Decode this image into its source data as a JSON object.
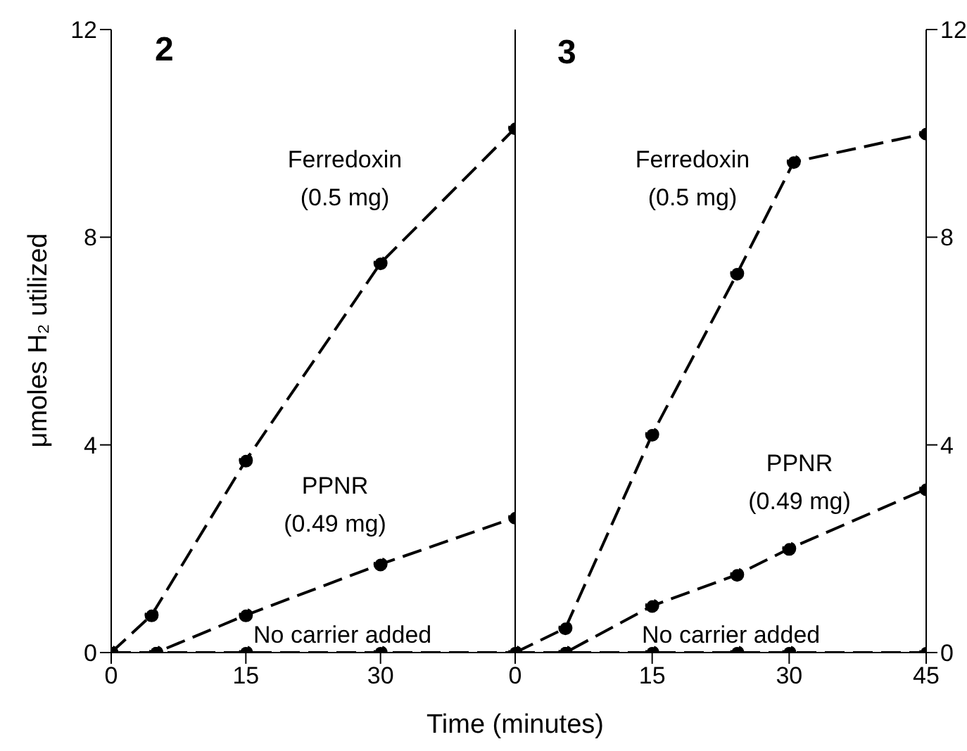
{
  "chart_data": [
    {
      "type": "line",
      "title": "2",
      "xlabel": "Time (minutes)",
      "ylabel": "μmoles H₂ utilized",
      "xlim": [
        0,
        45
      ],
      "xticks": [
        0,
        15,
        30
      ],
      "ylim": [
        0,
        12
      ],
      "yticks": [
        0,
        4,
        8,
        12
      ],
      "marker": "circle",
      "line_style": "dashed",
      "series": [
        {
          "name": "Ferredoxin (0.5 mg)",
          "color": "#000000",
          "x": [
            0,
            4.5,
            15,
            30,
            45
          ],
          "values": [
            0,
            0.72,
            3.7,
            7.5,
            10.1
          ]
        },
        {
          "name": "PPNR (0.49 mg)",
          "color": "#000000",
          "x": [
            0,
            5,
            15,
            30,
            45
          ],
          "values": [
            0,
            0,
            0.72,
            1.7,
            2.6
          ]
        },
        {
          "name": "No carrier added",
          "color": "#000000",
          "x": [
            0,
            5,
            15,
            30,
            45
          ],
          "values": [
            0,
            0,
            0,
            0,
            0
          ]
        }
      ]
    },
    {
      "type": "line",
      "title": "3",
      "xlim": [
        0,
        45
      ],
      "xticks": [
        0,
        15,
        30,
        45
      ],
      "ylim": [
        0,
        12
      ],
      "yticks": [
        0,
        4,
        8,
        12
      ],
      "marker": "circle",
      "line_style": "dashed",
      "series": [
        {
          "name": "Ferredoxin (0.5 mg)",
          "color": "#000000",
          "x": [
            0,
            5.5,
            15,
            24.3,
            30.5,
            45
          ],
          "values": [
            0,
            0.47,
            4.2,
            7.3,
            9.45,
            10
          ]
        },
        {
          "name": "PPNR (0.49 mg)",
          "color": "#000000",
          "x": [
            0,
            5.5,
            15,
            24.3,
            30,
            45
          ],
          "values": [
            0,
            0,
            0.9,
            1.5,
            2,
            3.15
          ]
        },
        {
          "name": "No carrier added",
          "color": "#000000",
          "x": [
            0,
            5.5,
            15,
            24.3,
            30,
            45
          ],
          "values": [
            0,
            0,
            0,
            0,
            0,
            0
          ]
        }
      ]
    }
  ]
}
